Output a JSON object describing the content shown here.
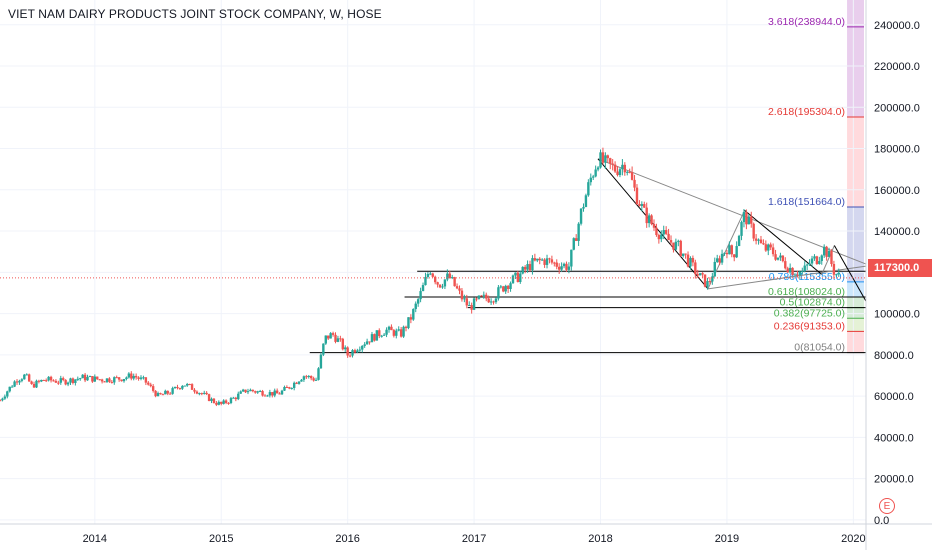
{
  "header": {
    "title": "VIET NAM DAIRY PRODUCTS JOINT STOCK COMPANY, W, HOSE"
  },
  "chart_data": {
    "type": "candlestick",
    "interval": "W",
    "exchange": "HOSE",
    "x_labels": [
      "2014",
      "2015",
      "2016",
      "2017",
      "2018",
      "2019",
      "2020"
    ],
    "y_ticks": [
      "0.0",
      "20000.0",
      "40000.0",
      "60000.0",
      "80000.0",
      "100000.0",
      "120000.0",
      "140000.0",
      "160000.0",
      "180000.0",
      "200000.0",
      "220000.0",
      "240000.0"
    ],
    "ylim": [
      -2000,
      252000
    ],
    "xlim": [
      2013.25,
      2020.1
    ],
    "current_price": {
      "value": 117300,
      "label": "117300.0",
      "color": "#ef5350"
    },
    "up_color": "#26a69a",
    "down_color": "#ef5350",
    "price_path": [
      [
        2013.25,
        58000
      ],
      [
        2013.3,
        62000
      ],
      [
        2013.38,
        68000
      ],
      [
        2013.45,
        70000
      ],
      [
        2013.5,
        65000
      ],
      [
        2013.6,
        68000
      ],
      [
        2013.75,
        67000
      ],
      [
        2013.9,
        69000
      ],
      [
        2014.05,
        68000
      ],
      [
        2014.2,
        68500
      ],
      [
        2014.3,
        70000
      ],
      [
        2014.4,
        67000
      ],
      [
        2014.5,
        60000
      ],
      [
        2014.6,
        62000
      ],
      [
        2014.7,
        66000
      ],
      [
        2014.8,
        63000
      ],
      [
        2014.95,
        57000
      ],
      [
        2015.0,
        56000
      ],
      [
        2015.1,
        59000
      ],
      [
        2015.2,
        63000
      ],
      [
        2015.3,
        62000
      ],
      [
        2015.45,
        61000
      ],
      [
        2015.55,
        65000
      ],
      [
        2015.65,
        70000
      ],
      [
        2015.75,
        68000
      ],
      [
        2015.82,
        88000
      ],
      [
        2015.88,
        90000
      ],
      [
        2015.94,
        86000
      ],
      [
        2016.0,
        80000
      ],
      [
        2016.08,
        84000
      ],
      [
        2016.18,
        88000
      ],
      [
        2016.3,
        92000
      ],
      [
        2016.42,
        90000
      ],
      [
        2016.5,
        98000
      ],
      [
        2016.58,
        110000
      ],
      [
        2016.65,
        122000
      ],
      [
        2016.72,
        114000
      ],
      [
        2016.8,
        118000
      ],
      [
        2016.9,
        108000
      ],
      [
        2016.96,
        103000
      ],
      [
        2017.05,
        107000
      ],
      [
        2017.15,
        108000
      ],
      [
        2017.25,
        114000
      ],
      [
        2017.35,
        118000
      ],
      [
        2017.45,
        124000
      ],
      [
        2017.55,
        126000
      ],
      [
        2017.65,
        124000
      ],
      [
        2017.75,
        123000
      ],
      [
        2017.85,
        150000
      ],
      [
        2017.92,
        165000
      ],
      [
        2017.98,
        175000
      ],
      [
        2018.05,
        172000
      ],
      [
        2018.12,
        170000
      ],
      [
        2018.2,
        173000
      ],
      [
        2018.28,
        158000
      ],
      [
        2018.35,
        148000
      ],
      [
        2018.45,
        140000
      ],
      [
        2018.55,
        135000
      ],
      [
        2018.62,
        132000
      ],
      [
        2018.7,
        125000
      ],
      [
        2018.78,
        118000
      ],
      [
        2018.85,
        114000
      ],
      [
        2018.92,
        125000
      ],
      [
        2019.0,
        132000
      ],
      [
        2019.05,
        128000
      ],
      [
        2019.1,
        140000
      ],
      [
        2019.14,
        148000
      ],
      [
        2019.2,
        140000
      ],
      [
        2019.28,
        132000
      ],
      [
        2019.36,
        130000
      ],
      [
        2019.44,
        125000
      ],
      [
        2019.52,
        121000
      ],
      [
        2019.6,
        120000
      ],
      [
        2019.66,
        125000
      ],
      [
        2019.72,
        127000
      ],
      [
        2019.76,
        132000
      ],
      [
        2019.8,
        129000
      ],
      [
        2019.85,
        120000
      ],
      [
        2019.9,
        117300
      ]
    ],
    "trend_lines": [
      {
        "from": [
          2015.7,
          81054
        ],
        "to": [
          2020.1,
          81054
        ],
        "color": "#000000"
      },
      {
        "from": [
          2016.95,
          102874
        ],
        "to": [
          2020.1,
          102874
        ],
        "color": "#000000"
      },
      {
        "from": [
          2016.45,
          108024
        ],
        "to": [
          2020.1,
          108024
        ],
        "color": "#000000"
      },
      {
        "from": [
          2016.55,
          120500
        ],
        "to": [
          2020.1,
          120500
        ],
        "color": "#000000"
      },
      {
        "from": [
          2017.98,
          175000
        ],
        "to": [
          2020.1,
          124000
        ],
        "color": "#888888"
      },
      {
        "from": [
          2017.98,
          175000
        ],
        "to": [
          2018.85,
          112000
        ],
        "color": "#000000"
      },
      {
        "from": [
          2018.85,
          112000
        ],
        "to": [
          2020.1,
          123000
        ],
        "color": "#888888"
      },
      {
        "from": [
          2018.85,
          112000
        ],
        "to": [
          2019.14,
          150000
        ],
        "color": "#888888"
      },
      {
        "from": [
          2019.14,
          150000
        ],
        "to": [
          2019.75,
          119000
        ],
        "color": "#000000"
      },
      {
        "from": [
          2019.75,
          119000
        ],
        "to": [
          2019.85,
          133000
        ],
        "color": "#888888"
      },
      {
        "from": [
          2019.85,
          133000
        ],
        "to": [
          2020.1,
          106000
        ],
        "color": "#000000"
      }
    ],
    "fib_levels": [
      {
        "label": "3.618(238944.0)",
        "value": 238944,
        "color": "#9c27b0"
      },
      {
        "label": "2.618(195304.0)",
        "value": 195304,
        "color": "#e53935"
      },
      {
        "label": "1.618(151664.0)",
        "value": 151664,
        "color": "#3f51b5"
      },
      {
        "label": "0.786(115355.0)",
        "value": 115355,
        "color": "#2196f3"
      },
      {
        "label": "0.618(108024.0)",
        "value": 108024,
        "color": "#4caf50"
      },
      {
        "label": "0.5(102874.0)",
        "value": 102874,
        "color": "#4caf50"
      },
      {
        "label": "0.382(97725.0)",
        "value": 97725,
        "color": "#4caf50"
      },
      {
        "label": "0.236(91353.0)",
        "value": 91353,
        "color": "#e53935"
      },
      {
        "label": "0(81054.0)",
        "value": 81054,
        "color": "#808080"
      }
    ],
    "fib_zones": [
      {
        "from": 195304,
        "to": 252000,
        "color": "#e1bee7"
      },
      {
        "from": 151664,
        "to": 195304,
        "color": "#ffcdd2"
      },
      {
        "from": 115355,
        "to": 151664,
        "color": "#c5cae9"
      },
      {
        "from": 108024,
        "to": 115355,
        "color": "#bbdefb"
      },
      {
        "from": 97725,
        "to": 108024,
        "color": "#c8e6c9"
      },
      {
        "from": 91353,
        "to": 97725,
        "color": "#dcedc8"
      },
      {
        "from": 81054,
        "to": 91353,
        "color": "#ffcdd2"
      }
    ],
    "grid": true
  },
  "badge": {
    "label": "E"
  }
}
